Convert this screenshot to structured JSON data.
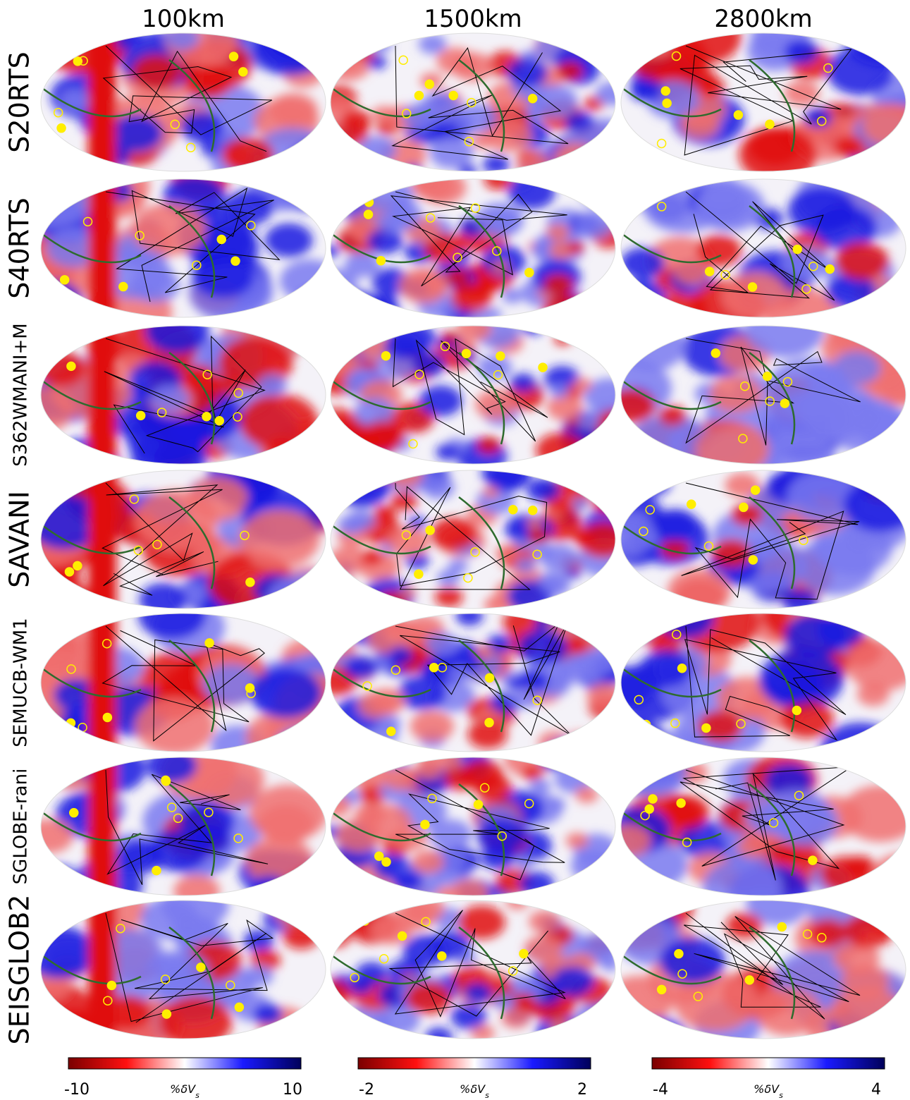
{
  "columns": [
    "100km",
    "1500km",
    "2800km"
  ],
  "rows": [
    "S20RTS",
    "S40RTS",
    "S362WMANI+M",
    "SAVANI",
    "SEMUCB-WM1",
    "SGLOBE-rani",
    "SEISGLOB2"
  ],
  "colorbars": [
    {
      "ticks": [
        -10,
        10
      ],
      "label": {
        "main": "%δV",
        "sub": "s"
      }
    },
    {
      "ticks": [
        -2,
        2
      ],
      "label": {
        "main": "%δV",
        "sub": "s"
      }
    },
    {
      "ticks": [
        -4,
        4
      ],
      "label": {
        "main": "%δV",
        "sub": "s"
      }
    }
  ]
}
